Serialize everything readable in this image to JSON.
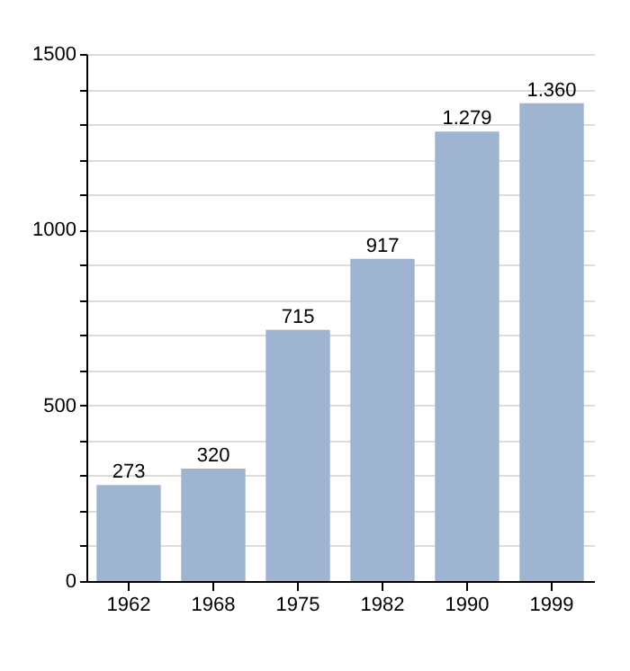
{
  "chart_data": {
    "type": "bar",
    "categories": [
      "1962",
      "1968",
      "1975",
      "1982",
      "1990",
      "1999"
    ],
    "values": [
      273,
      320,
      715,
      917,
      1279,
      1360
    ],
    "value_labels": [
      "273",
      "320",
      "715",
      "917",
      "1.279",
      "1.360"
    ],
    "color": "#9fb4d0",
    "ylim": [
      0,
      1500
    ],
    "yticks": [
      0,
      {
        "value": 100,
        "label": null
      },
      {
        "value": 200,
        "label": null
      },
      {
        "value": 300,
        "label": null
      },
      {
        "value": 400,
        "label": null
      },
      500,
      {
        "value": 600,
        "label": null
      },
      {
        "value": 700,
        "label": null
      },
      {
        "value": 800,
        "label": null
      },
      {
        "value": 900,
        "label": null
      },
      1000,
      {
        "value": 1100,
        "label": null
      },
      {
        "value": 1200,
        "label": null
      },
      {
        "value": 1300,
        "label": null
      },
      {
        "value": 1400,
        "label": null
      },
      1500
    ],
    "grid": true
  }
}
